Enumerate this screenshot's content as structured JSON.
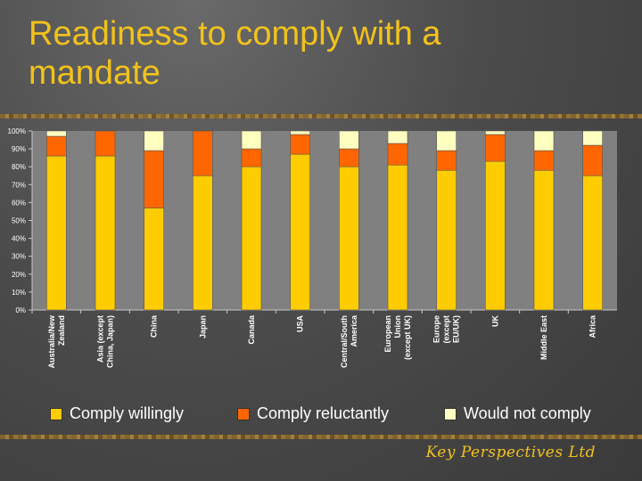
{
  "slide": {
    "title": "Readiness to comply with a mandate",
    "footer": "Key Perspectives Ltd"
  },
  "colors": {
    "comply_willingly": "#ffcc00",
    "comply_reluctantly": "#ff6600",
    "would_not_comply": "#ffffc0",
    "plot_background": "#808080"
  },
  "chart_data": {
    "type": "bar",
    "stacked": true,
    "title": "",
    "xlabel": "",
    "ylabel": "",
    "ylim": [
      0,
      100
    ],
    "y_ticks": [
      "0%",
      "10%",
      "20%",
      "30%",
      "40%",
      "50%",
      "60%",
      "70%",
      "80%",
      "90%",
      "100%"
    ],
    "categories": [
      "Australia/New Zealand",
      "Asia (except China, Japan)",
      "China",
      "Japan",
      "Canada",
      "USA",
      "Central/South America",
      "European Union (except UK)",
      "Europe (except EU/UK)",
      "UK",
      "Middle East",
      "Africa"
    ],
    "category_lines": [
      [
        "Australia/New",
        "Zealand"
      ],
      [
        "Asia (except",
        "China, Japan)"
      ],
      [
        "China"
      ],
      [
        "Japan"
      ],
      [
        "Canada"
      ],
      [
        "USA"
      ],
      [
        "Central/South",
        "America"
      ],
      [
        "European",
        "Union",
        "(except UK)"
      ],
      [
        "Europe",
        "(except",
        "EU/UK)"
      ],
      [
        "UK"
      ],
      [
        "Middle East"
      ],
      [
        "Africa"
      ]
    ],
    "series": [
      {
        "name": "Comply willingly",
        "values": [
          86,
          86,
          57,
          75,
          80,
          87,
          80,
          81,
          78,
          83,
          78,
          75
        ]
      },
      {
        "name": "Comply reluctantly",
        "values": [
          11,
          14,
          32,
          25,
          10,
          11,
          10,
          12,
          11,
          15,
          11,
          17
        ]
      },
      {
        "name": "Would not comply",
        "values": [
          3,
          0,
          11,
          0,
          10,
          2,
          10,
          7,
          11,
          2,
          11,
          8
        ]
      }
    ],
    "grid": false,
    "legend": "bottom"
  }
}
